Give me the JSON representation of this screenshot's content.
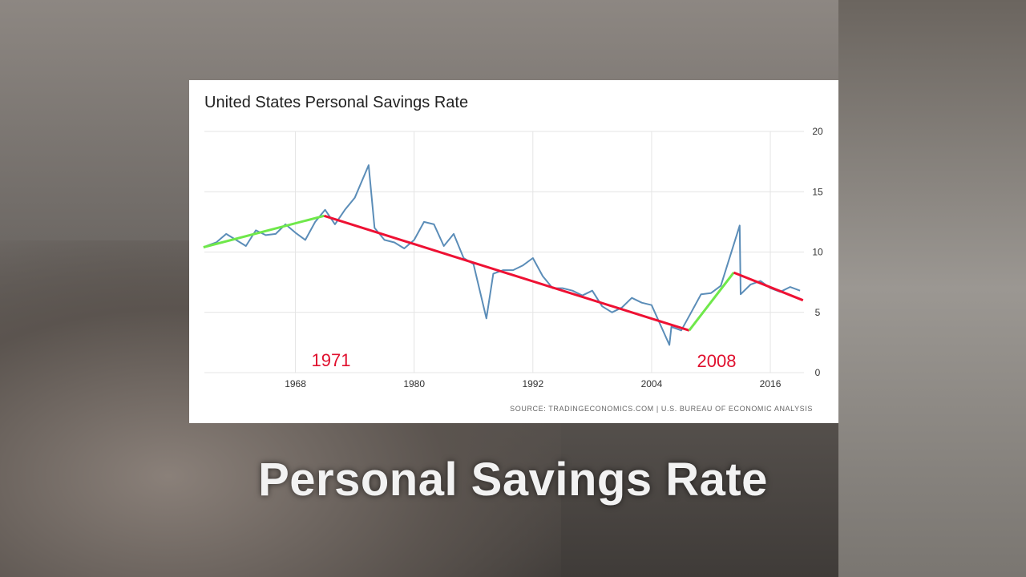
{
  "chart_data": {
    "type": "line",
    "title": "United States Personal Savings Rate",
    "source": "SOURCE: TRADINGECONOMICS.COM  |  U.S. BUREAU OF ECONOMIC ANALYSIS",
    "caption": "Personal Savings Rate",
    "x": [
      1959,
      1960,
      1961,
      1962,
      1963,
      1964,
      1965,
      1966,
      1967,
      1968,
      1969,
      1970,
      1971,
      1972,
      1973,
      1974,
      1975.4,
      1976,
      1977,
      1978,
      1979,
      1980,
      1981,
      1982,
      1983,
      1984,
      1985,
      1986,
      1987.3,
      1988,
      1989,
      1990,
      1991,
      1992,
      1993,
      1994,
      1995,
      1996,
      1997,
      1998,
      1999,
      2000,
      2001,
      2002,
      2003,
      2004,
      2005.8,
      2006,
      2007,
      2008,
      2009,
      2010,
      2011,
      2012.9,
      2013,
      2014,
      2015,
      2016,
      2017,
      2018,
      2019
    ],
    "series": [
      {
        "color": "#5b8db8",
        "values": [
          10.5,
          10.8,
          11.5,
          11.0,
          10.5,
          11.8,
          11.4,
          11.5,
          12.3,
          11.6,
          11.0,
          12.5,
          13.5,
          12.3,
          13.5,
          14.5,
          17.2,
          12.0,
          11.0,
          10.8,
          10.3,
          11.0,
          12.5,
          12.3,
          10.5,
          11.5,
          9.5,
          9.0,
          4.5,
          8.2,
          8.5,
          8.5,
          8.9,
          9.5,
          8.0,
          7.0,
          7.0,
          6.8,
          6.4,
          6.8,
          5.5,
          5.0,
          5.4,
          6.2,
          5.8,
          5.6,
          2.3,
          3.8,
          3.5,
          5.0,
          6.5,
          6.6,
          7.2,
          12.2,
          6.5,
          7.3,
          7.6,
          7.0,
          6.7,
          7.1,
          6.8
        ]
      }
    ],
    "trend_lines": [
      {
        "color": "#6fe84a",
        "x": [
          1958.7,
          1970.9
        ],
        "values": [
          10.4,
          13.0
        ]
      },
      {
        "color": "#ee1133",
        "x": [
          1970.9,
          2007.8
        ],
        "values": [
          13.0,
          3.5
        ]
      },
      {
        "color": "#6fe84a",
        "x": [
          2007.8,
          2012.3
        ],
        "values": [
          3.5,
          8.3
        ]
      },
      {
        "color": "#ee1133",
        "x": [
          2012.3,
          2019.3
        ],
        "values": [
          8.3,
          6.0
        ]
      }
    ],
    "annotations": [
      {
        "text": "1971",
        "color": "#e0102e"
      },
      {
        "text": "2008",
        "color": "#e0102e"
      }
    ],
    "xlim": [
      1958.8,
      2019.4
    ],
    "xticks": [
      1968,
      1980,
      1992,
      2004,
      2016
    ],
    "ylim": [
      0,
      20
    ],
    "yticks": [
      0,
      5,
      10,
      15,
      20
    ],
    "grid": true
  }
}
